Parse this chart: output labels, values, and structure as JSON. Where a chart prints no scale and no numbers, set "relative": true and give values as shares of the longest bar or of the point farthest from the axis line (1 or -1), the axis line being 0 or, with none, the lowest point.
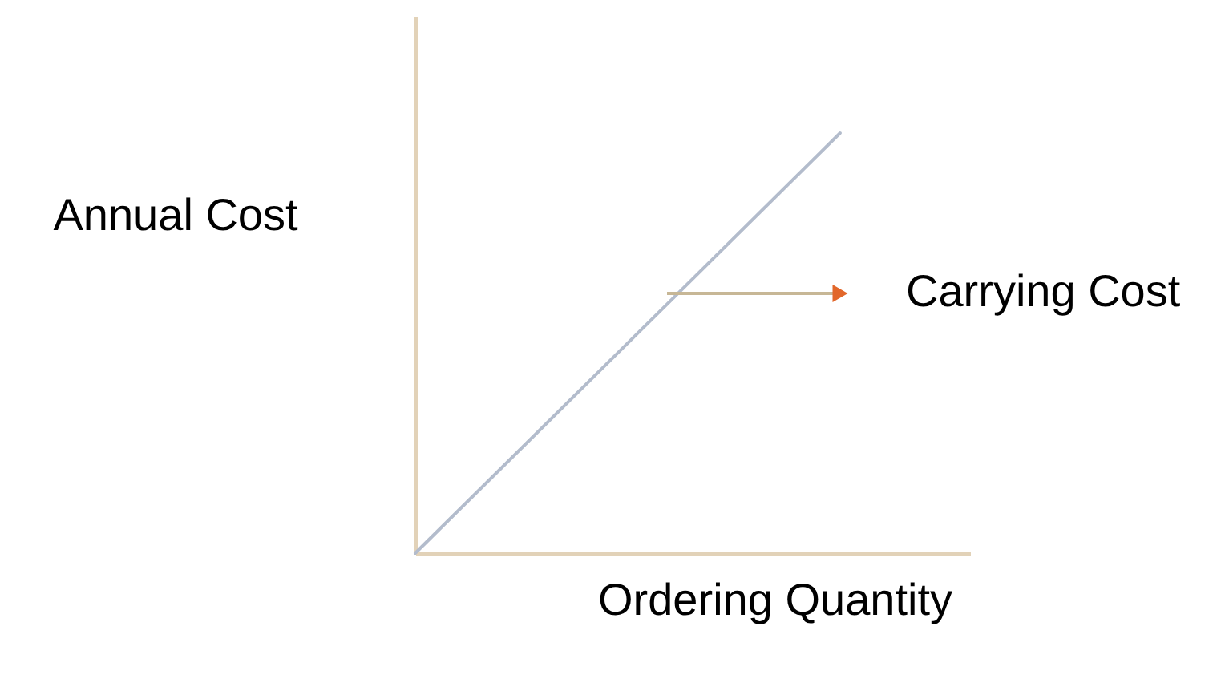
{
  "chart_data": {
    "type": "line",
    "xlabel": "Ordering Quantity",
    "ylabel": "Annual Cost",
    "categories": [
      null,
      null
    ],
    "relative": true,
    "series": [
      {
        "name": "Carrying Cost",
        "color": "#b3bccc",
        "values": [
          0,
          1
        ]
      }
    ]
  }
}
